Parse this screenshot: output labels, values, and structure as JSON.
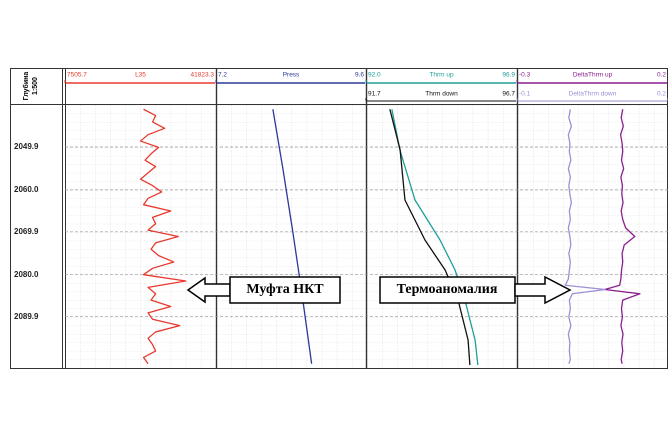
{
  "chart_data": {
    "type": "well-log",
    "depth_title": "Глубина",
    "depth_scale": "1:500",
    "ylim": [
      2040,
      2102
    ],
    "yticks": [
      2049.9,
      {
        "value": 2060,
        "label": "2060.0"
      },
      2069.9,
      {
        "value": 2080,
        "label": "2080.0"
      },
      2089.9
    ],
    "grid": true,
    "tracks": [
      {
        "series": [
          {
            "name": "L35",
            "color": "#e8392e",
            "xlim": [
              7505.7,
              41823.3
            ],
            "xticks": [
              7505.7,
              41823.3
            ],
            "depth": [
              2041,
              2042.5,
              2044,
              2045.5,
              2047,
              2048.5,
              2050,
              2051.5,
              2053,
              2054.5,
              2056,
              2057.5,
              2059,
              2060.5,
              2062,
              2063.5,
              2065,
              2066.5,
              2068,
              2069.5,
              2071,
              2072.5,
              2074,
              2075.5,
              2077,
              2078.5,
              2080,
              2081.5,
              2083,
              2084.5,
              2086,
              2087.5,
              2089,
              2090.5,
              2092,
              2093.5,
              2095,
              2096.5,
              2098,
              2099.5,
              2101
            ],
            "values": [
              25351,
              28096,
              27410,
              30155,
              26380,
              24665,
              28783,
              27067,
              25694,
              28096,
              26380,
              24665,
              27410,
              29469,
              26380,
              25351,
              31528,
              27410,
              28096,
              26380,
              33244,
              28096,
              27067,
              28783,
              32214,
              27410,
              25351,
              34960,
              26380,
              28096,
              27067,
              31528,
              26380,
              27410,
              33587,
              28096,
              26380,
              27410,
              28096,
              25351,
              26380
            ]
          }
        ]
      },
      {
        "series": [
          {
            "name": "Press",
            "color": "#2b3a9a",
            "xlim": [
              7.2,
              9.6
            ],
            "xticks": [
              7.2,
              9.6
            ],
            "depth": [
              2041,
              2055,
              2070,
              2085,
              2101
            ],
            "values": [
              8.11,
              8.27,
              8.43,
              8.58,
              8.73
            ]
          }
        ]
      },
      {
        "series": [
          {
            "name": "Thrm up",
            "color": "#1f9e9a",
            "xlim": [
              92,
              96.9
            ],
            "xticks": [
              {
                "value": 92,
                "label": "92.0"
              },
              96.9
            ],
            "depth": [
              2041,
              2050.6,
              2062.4,
              2071.8,
              2078.9,
              2086,
              2095.4,
              2101.3
            ],
            "values": [
              92.84,
              93.1,
              93.59,
              94.4,
              94.89,
              95.21,
              95.54,
              95.63
            ]
          },
          {
            "name": "Thrm down",
            "color": "#111111",
            "xlim": [
              91.7,
              96.7
            ],
            "xticks": [
              91.7,
              96.7
            ],
            "depth": [
              2041,
              2050.6,
              2062.4,
              2071.8,
              2078.9,
              2086,
              2095.4,
              2101.3
            ],
            "values": [
              92.49,
              92.83,
              92.99,
              93.65,
              94.32,
              94.75,
              95.08,
              95.14
            ]
          }
        ]
      },
      {
        "series": [
          {
            "name": "DeltaThrm up",
            "color": "#8a1f8f",
            "xlim": [
              -0.3,
              0.2
            ],
            "xticks": [
              -0.3,
              0.2
            ],
            "depth": [
              2041,
              2043,
              2045,
              2047,
              2049,
              2051,
              2053,
              2055,
              2057,
              2059,
              2061,
              2063,
              2065,
              2067,
              2069,
              2071,
              2073,
              2075,
              2077,
              2079,
              2081,
              2082.5,
              2083.5,
              2084.5,
              2086,
              2088,
              2090,
              2092,
              2094,
              2096,
              2098,
              2100,
              2101
            ],
            "values": [
              0.05,
              0.045,
              0.052,
              0.043,
              0.048,
              0.05,
              0.046,
              0.053,
              0.044,
              0.049,
              0.047,
              0.051,
              0.045,
              0.05,
              0.06,
              0.09,
              0.055,
              0.048,
              0.05,
              0.046,
              0.044,
              0.04,
              -0.009,
              0.107,
              0.05,
              0.046,
              0.049,
              0.044,
              0.051,
              0.047,
              0.05,
              0.045,
              0.048
            ]
          },
          {
            "name": "DeltaThrm down",
            "color": "#9b8fd6",
            "xlim": [
              -0.1,
              0.2
            ],
            "xticks": [
              -0.1,
              0.2
            ],
            "depth": [
              2041,
              2043,
              2045,
              2047,
              2049,
              2051,
              2053,
              2055,
              2057,
              2059,
              2061,
              2063,
              2065,
              2067,
              2069,
              2071,
              2073,
              2075,
              2077,
              2079,
              2081,
              2082.5,
              2083.5,
              2084.5,
              2086,
              2088,
              2090,
              2092,
              2094,
              2096,
              2098,
              2100,
              2101
            ],
            "values": [
              0.006,
              0.003,
              0.008,
              0.002,
              0.005,
              0.004,
              0.007,
              0.002,
              0.006,
              0.003,
              0.005,
              0.008,
              0.004,
              0.006,
              0.002,
              0.005,
              0.007,
              0.003,
              0.006,
              0.004,
              0.002,
              -0.004,
              0.075,
              0.01,
              0.004,
              0.006,
              0.003,
              0.007,
              0.002,
              0.005,
              0.004,
              0.006,
              0.003
            ]
          }
        ]
      }
    ],
    "annotations": [
      {
        "text": "Муфта НКТ"
      },
      {
        "text": "Термоаномалия"
      }
    ]
  }
}
